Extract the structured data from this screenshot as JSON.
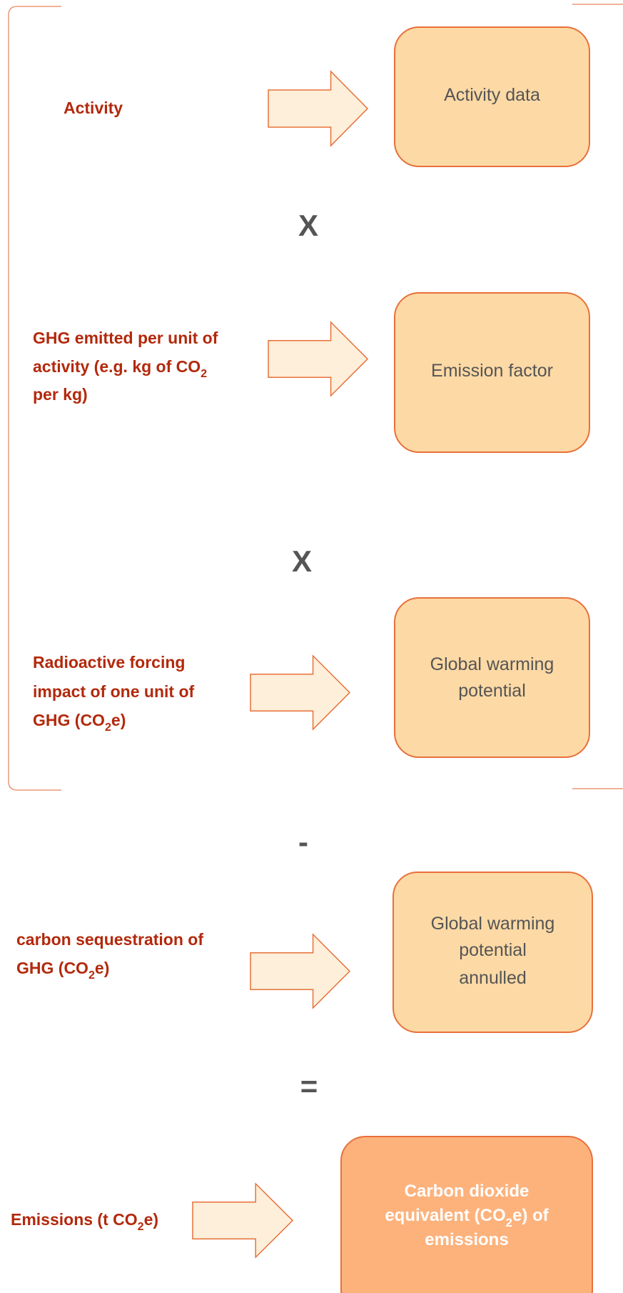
{
  "rows": [
    {
      "label": [
        [
          "Activity"
        ]
      ],
      "box": [
        [
          "Activity data"
        ]
      ]
    },
    {
      "label": [
        [
          "GHG emitted per unit of"
        ],
        [
          "activity (e.g. kg of CO",
          "2"
        ],
        [
          "per kg)"
        ]
      ],
      "box": [
        [
          "Emission factor"
        ]
      ]
    },
    {
      "label": [
        [
          "Radioactive forcing"
        ],
        [
          "impact of one unit of"
        ],
        [
          "GHG (CO",
          "2",
          "e)"
        ]
      ],
      "box": [
        [
          "Global warming"
        ],
        [
          "potential"
        ]
      ]
    },
    {
      "label": [
        [
          "carbon sequestration of"
        ],
        [
          "GHG (CO",
          "2",
          "e)"
        ]
      ],
      "box": [
        [
          "Global warming"
        ],
        [
          "potential"
        ],
        [
          "annulled"
        ]
      ]
    },
    {
      "label": [
        [
          "Emissions (t CO",
          "2",
          "e)"
        ]
      ],
      "box": [
        [
          "Carbon dioxide"
        ],
        [
          "equivalent (CO",
          "2",
          "e) of"
        ],
        [
          "emissions"
        ]
      ]
    }
  ],
  "operators": [
    "X",
    "X",
    "-",
    "="
  ]
}
